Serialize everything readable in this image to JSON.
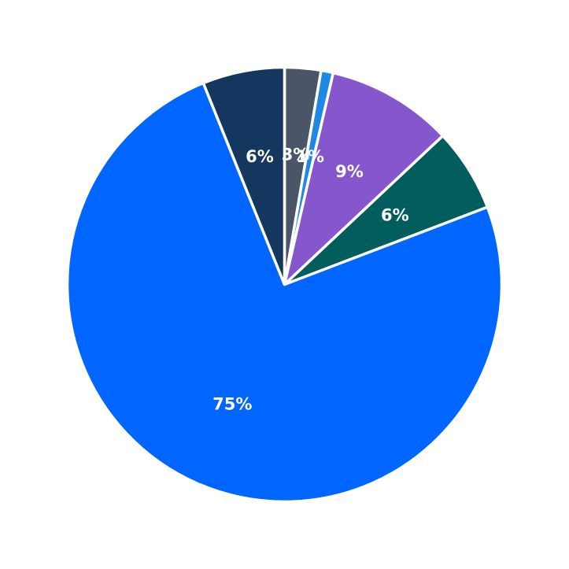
{
  "chart_data": {
    "type": "pie",
    "title": "",
    "start_angle_deg": 90,
    "direction": "clockwise",
    "legend": "none",
    "slices": [
      {
        "value": 2.7,
        "label": "3%",
        "color": "#4a5568"
      },
      {
        "value": 0.9,
        "label": "1%",
        "color": "#1e88e5"
      },
      {
        "value": 9.4,
        "label": "9%",
        "color": "#8656cc"
      },
      {
        "value": 6.2,
        "label": "6%",
        "color": "#025e5c"
      },
      {
        "value": 74.7,
        "label": "75%",
        "color": "#0066ff"
      },
      {
        "value": 6.1,
        "label": "6%",
        "color": "#14375f"
      }
    ]
  }
}
